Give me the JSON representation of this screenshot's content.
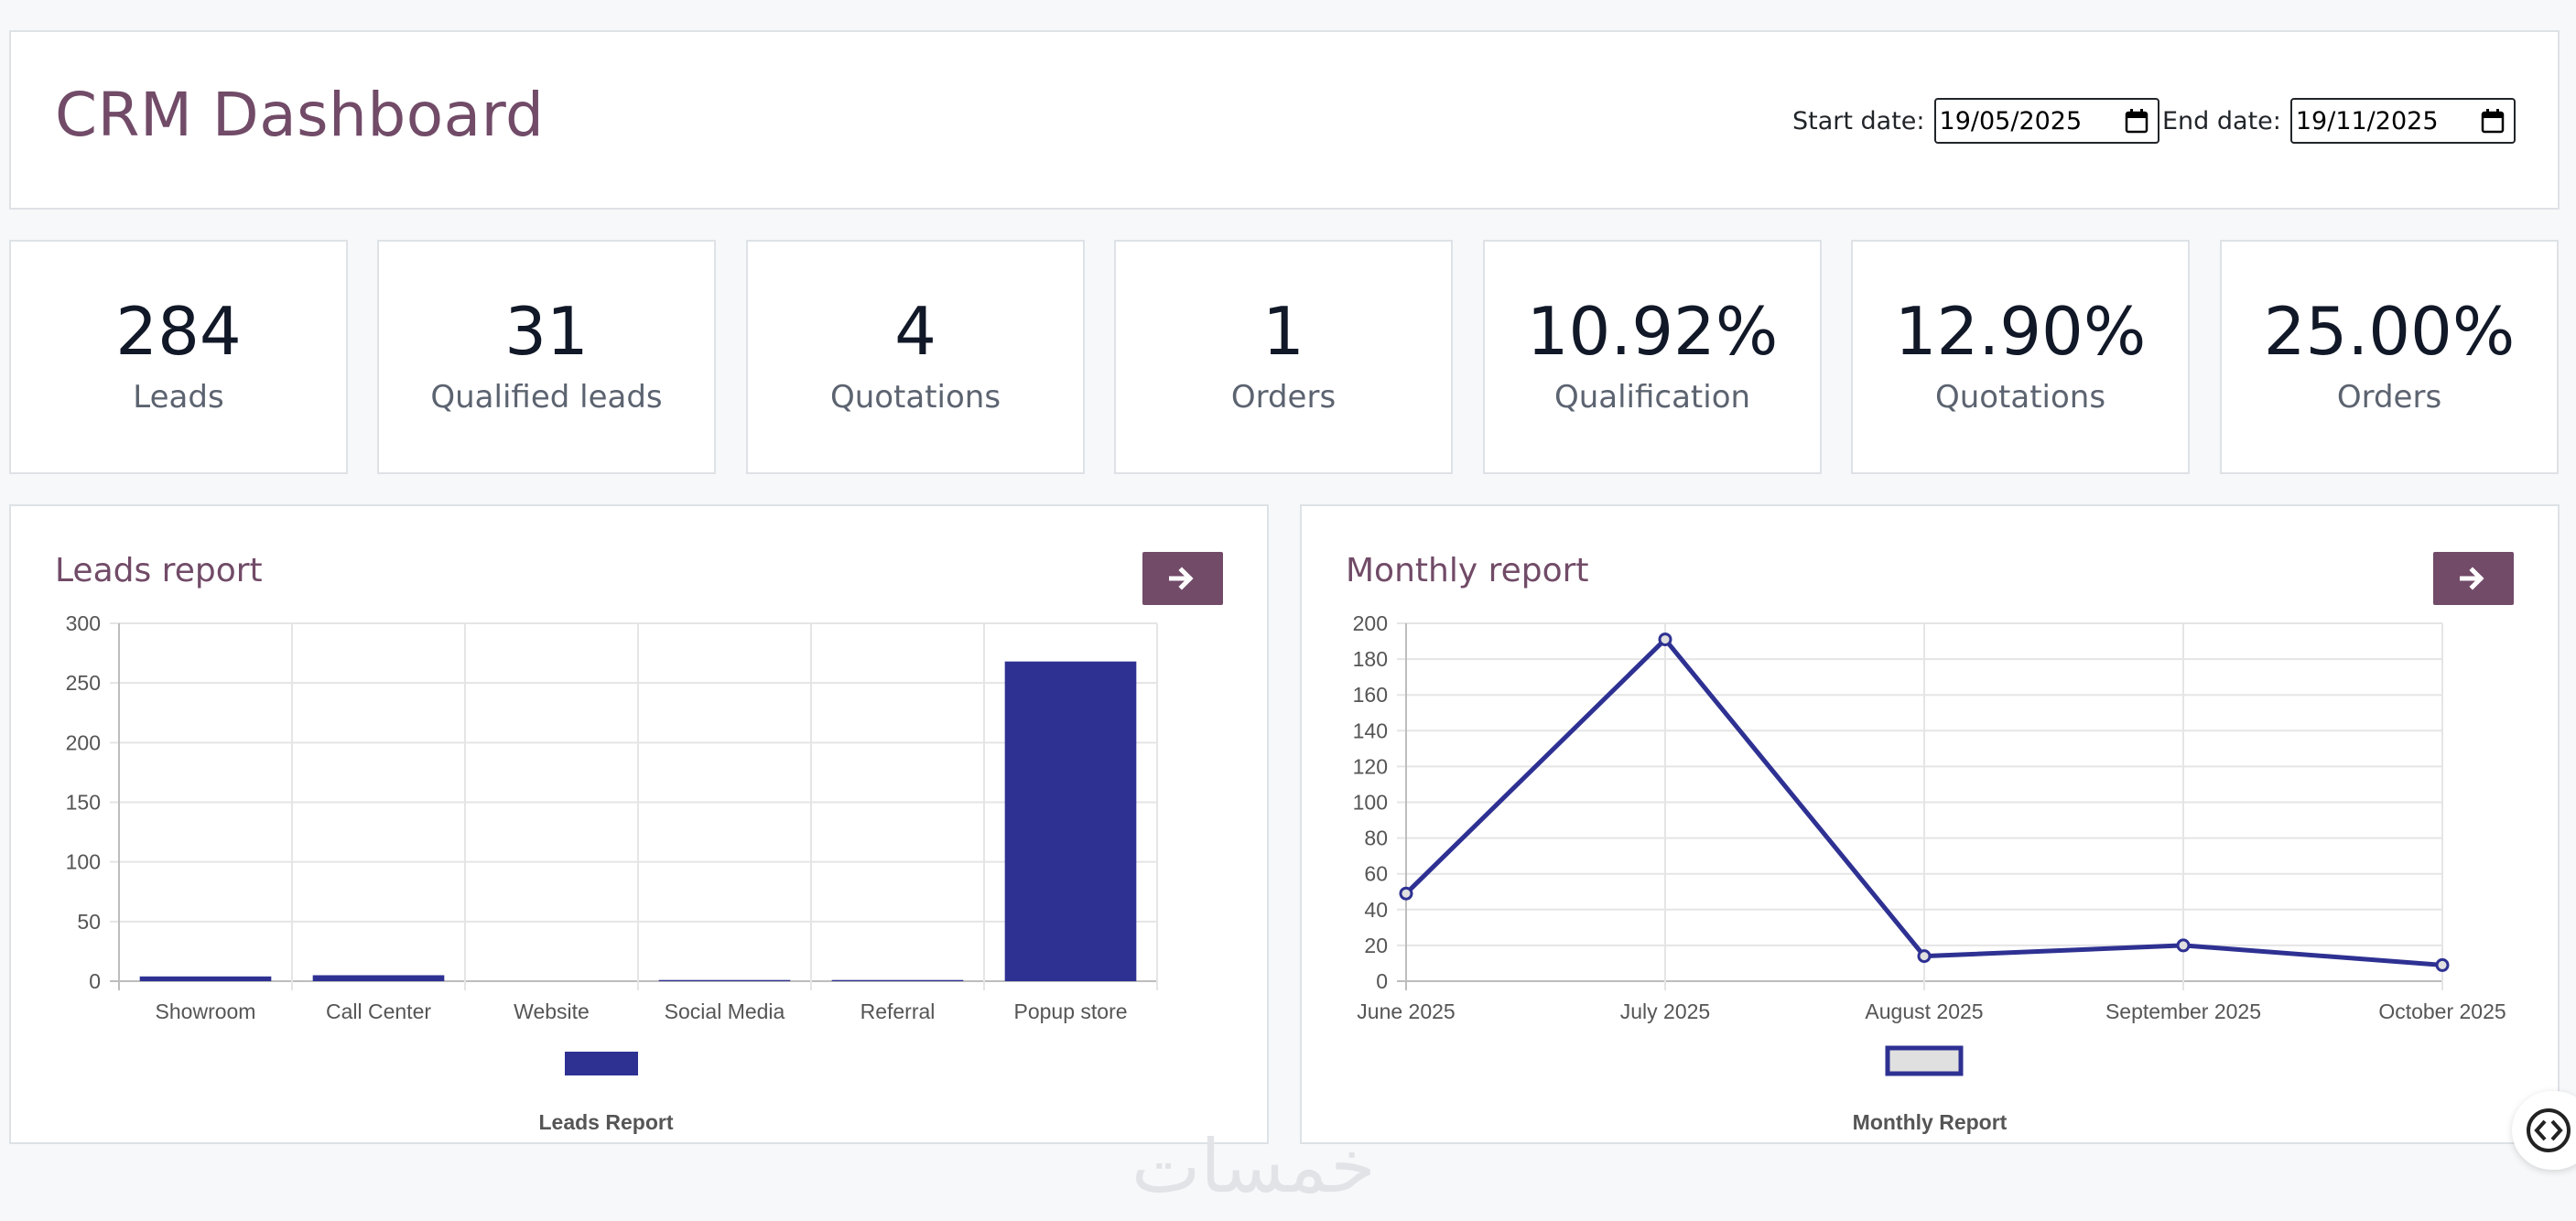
{
  "header": {
    "title": "CRM Dashboard",
    "start_label": "Start date:",
    "start_value": "19/05/2025",
    "end_label": "End date:",
    "end_value": "19/11/2025"
  },
  "kpis": [
    {
      "value": "284",
      "label": "Leads"
    },
    {
      "value": "31",
      "label": "Qualified leads"
    },
    {
      "value": "4",
      "label": "Quotations"
    },
    {
      "value": "1",
      "label": "Orders"
    },
    {
      "value": "10.92%",
      "label": "Qualification"
    },
    {
      "value": "12.90%",
      "label": "Quotations"
    },
    {
      "value": "25.00%",
      "label": "Orders"
    }
  ],
  "leads_report": {
    "title": "Leads report",
    "open_icon": "arrow-right-icon"
  },
  "monthly_report": {
    "title": "Monthly report",
    "open_icon": "arrow-right-icon"
  },
  "watermark": "خمسات",
  "colors": {
    "accent": "#714b67",
    "series": "#2e3192",
    "legend_fill": "#e0e0e0"
  },
  "chart_data": [
    {
      "type": "bar",
      "categories": [
        "Showroom",
        "Call Center",
        "Website",
        "Social Media",
        "Referral",
        "Popup store"
      ],
      "series": [
        {
          "name": "",
          "values": [
            4,
            5,
            0,
            1,
            1,
            268
          ]
        }
      ],
      "ylim": [
        0,
        300
      ],
      "yticks": [
        0,
        50,
        100,
        150,
        200,
        250,
        300
      ],
      "legend_title": "Leads Report",
      "legend": "bottom-center",
      "grid": true
    },
    {
      "type": "line",
      "categories": [
        "June 2025",
        "July 2025",
        "August 2025",
        "September 2025",
        "October 2025"
      ],
      "series": [
        {
          "name": "",
          "values": [
            49,
            191,
            14,
            20,
            9
          ]
        }
      ],
      "ylim": [
        0,
        200
      ],
      "yticks": [
        0,
        20,
        40,
        60,
        80,
        100,
        120,
        140,
        160,
        180,
        200
      ],
      "legend_title": "Monthly Report",
      "legend": "bottom-center",
      "grid": true
    }
  ]
}
